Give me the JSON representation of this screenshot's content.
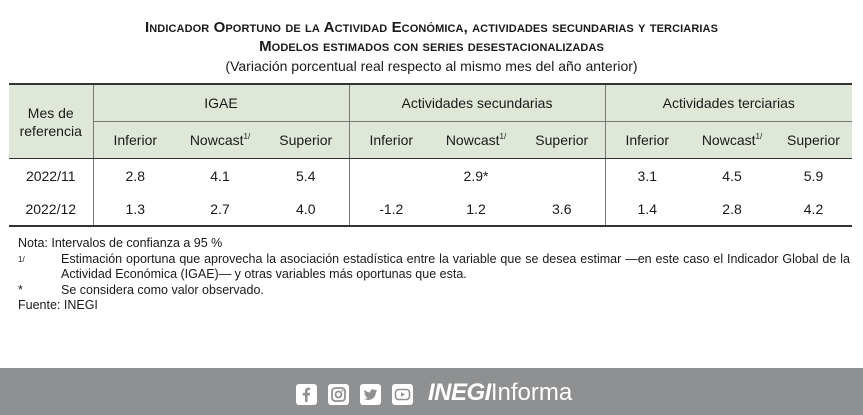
{
  "title_line1": "Indicador Oportuno de la Actividad Económica, actividades secundarias y terciarias",
  "title_line2": "Modelos estimados con series desestacionalizadas",
  "subtitle": "(Variación porcentual real respecto al mismo mes del año anterior)",
  "table": {
    "period_header": "Mes de referencia",
    "groups": [
      "IGAE",
      "Actividades secundarias",
      "Actividades terciarias"
    ],
    "subheaders": {
      "inferior": "Inferior",
      "nowcast": "Nowcast",
      "nowcast_mark": "1/",
      "superior": "Superior"
    },
    "rows": [
      {
        "period": "2022/11",
        "values": [
          "2.8",
          "4.1",
          "5.4",
          "",
          "2.9*",
          "",
          "3.1",
          "4.5",
          "5.9"
        ]
      },
      {
        "period": "2022/12",
        "values": [
          "1.3",
          "2.7",
          "4.0",
          "-1.2",
          "1.2",
          "3.6",
          "1.4",
          "2.8",
          "4.2"
        ]
      }
    ]
  },
  "notes": {
    "nota": "Nota:  Intervalos de confianza a 95 %",
    "mark1": "1/",
    "text1": "Estimación oportuna que aprovecha la asociación estadística entre la variable que se desea estimar —en este caso el Indicador Global de la Actividad Económica (IGAE)— y otras variables más oportunas que esta.",
    "mark2": "*",
    "text2": "Se considera como valor observado.",
    "fuente": "Fuente: INEGI"
  },
  "footer": {
    "icons": [
      "facebook-icon",
      "instagram-icon",
      "twitter-icon",
      "youtube-icon"
    ],
    "brand_bold": "INEGI",
    "brand_light": "Informa",
    "bg_color": "#8f9091"
  }
}
